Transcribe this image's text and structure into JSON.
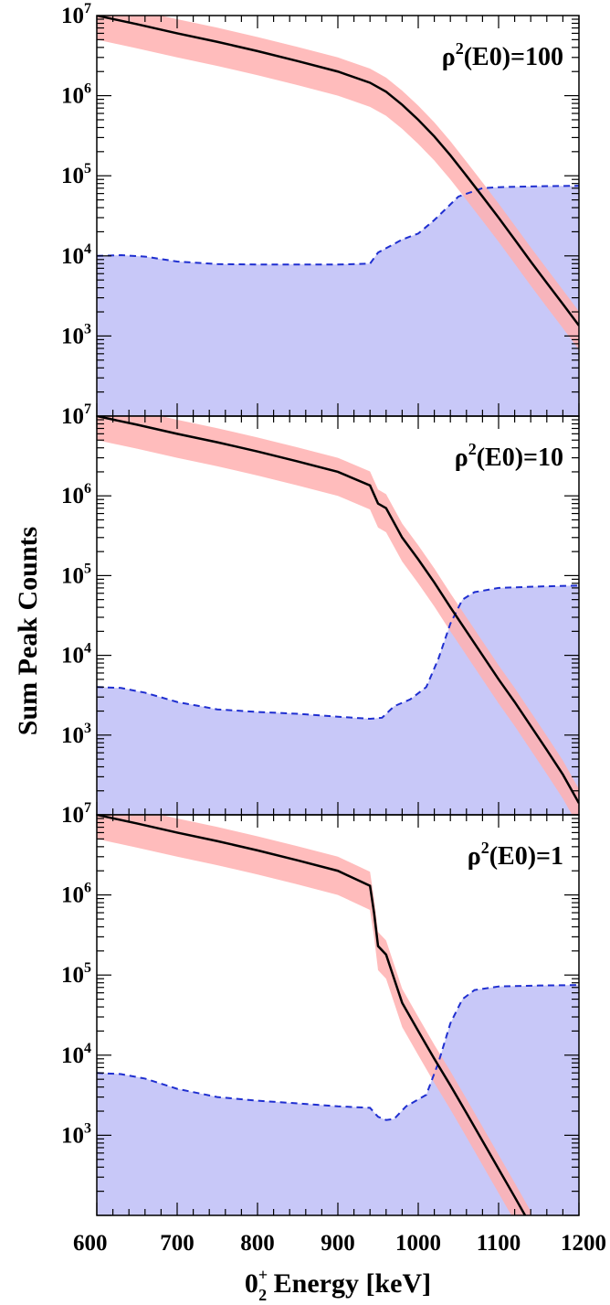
{
  "chart_data": {
    "type": "area",
    "xlabel": "0₂⁺ Energy [keV]",
    "xlabel_parts": {
      "base": "0",
      "sup": "+",
      "sub": "2",
      "rest": " Energy [keV]"
    },
    "ylabel": "Sum Peak Counts",
    "x_ticks": [
      "600",
      "700",
      "800",
      "900",
      "1000",
      "1100",
      "1200"
    ],
    "xlim": [
      600,
      1200
    ],
    "ylog": true,
    "colors": {
      "signal_line": "#000000",
      "signal_band": "#ffb0b0",
      "background_line": "#1f2fd0",
      "background_fill": "#c8c8f8"
    },
    "panels": [
      {
        "label_base": "ρ",
        "label_sup": "2",
        "label_rest": "(E0)=100",
        "ylim": [
          100,
          10000000
        ],
        "y_ticks": [
          {
            "base": "10",
            "exp": "7",
            "value": 10000000
          },
          {
            "base": "10",
            "exp": "6",
            "value": 1000000
          },
          {
            "base": "10",
            "exp": "5",
            "value": 100000
          },
          {
            "base": "10",
            "exp": "4",
            "value": 10000
          },
          {
            "base": "10",
            "exp": "3",
            "value": 1000
          }
        ],
        "series": [
          {
            "role": "signal",
            "x": [
              600,
              650,
              700,
              750,
              800,
              850,
              900,
              940,
              960,
              980,
              1000,
              1020,
              1040,
              1060,
              1080,
              1100,
              1120,
              1140,
              1160,
              1180,
              1200
            ],
            "y": [
              10000000,
              7800000,
              6000000,
              4700000,
              3600000,
              2700000,
              2000000,
              1450000,
              1120000,
              770000,
              500000,
              310000,
              180000,
              100000,
              55000,
              30000,
              16000,
              8500,
              4600,
              2500,
              1350
            ],
            "band_lower_factor": 0.5,
            "band_upper_factor": 1.5
          },
          {
            "role": "background",
            "x": [
              600,
              630,
              660,
              700,
              750,
              800,
              850,
              900,
              940,
              950,
              980,
              1000,
              1020,
              1050,
              1080,
              1100,
              1150,
              1200
            ],
            "y": [
              10000,
              10200,
              9800,
              8500,
              7900,
              7800,
              7800,
              7800,
              8000,
              11000,
              16000,
              19000,
              28000,
              55000,
              70000,
              72000,
              74000,
              75000
            ]
          }
        ]
      },
      {
        "label_base": "ρ",
        "label_sup": "2",
        "label_rest": "(E0)=10",
        "ylim": [
          100,
          10000000
        ],
        "y_ticks": [
          {
            "base": "10",
            "exp": "7",
            "value": 10000000
          },
          {
            "base": "10",
            "exp": "6",
            "value": 1000000
          },
          {
            "base": "10",
            "exp": "5",
            "value": 100000
          },
          {
            "base": "10",
            "exp": "4",
            "value": 10000
          },
          {
            "base": "10",
            "exp": "3",
            "value": 1000
          }
        ],
        "series": [
          {
            "role": "signal",
            "x": [
              600,
              650,
              700,
              750,
              800,
              850,
              900,
              940,
              950,
              960,
              980,
              1000,
              1020,
              1040,
              1060,
              1080,
              1100,
              1120,
              1140,
              1160,
              1180,
              1200
            ],
            "y": [
              10000000,
              7800000,
              6000000,
              4700000,
              3600000,
              2700000,
              2000000,
              1350000,
              800000,
              700000,
              300000,
              160000,
              82000,
              40000,
              20000,
              10000,
              5000,
              2600,
              1300,
              650,
              320,
              140
            ],
            "band_lower_factor": 0.5,
            "band_upper_factor": 1.5
          },
          {
            "role": "background",
            "x": [
              600,
              630,
              660,
              700,
              750,
              800,
              850,
              900,
              940,
              955,
              970,
              990,
              1010,
              1025,
              1040,
              1055,
              1070,
              1100,
              1150,
              1200
            ],
            "y": [
              4000,
              3900,
              3400,
              2600,
              2100,
              1950,
              1850,
              1700,
              1600,
              1650,
              2300,
              2800,
              4000,
              9000,
              25000,
              50000,
              62000,
              70000,
              73000,
              75000
            ]
          }
        ]
      },
      {
        "label_base": "ρ",
        "label_sup": "2",
        "label_rest": "(E0)=1",
        "ylim": [
          100,
          10000000
        ],
        "y_ticks": [
          {
            "base": "10",
            "exp": "7",
            "value": 10000000
          },
          {
            "base": "10",
            "exp": "6",
            "value": 1000000
          },
          {
            "base": "10",
            "exp": "5",
            "value": 100000
          },
          {
            "base": "10",
            "exp": "4",
            "value": 10000
          },
          {
            "base": "10",
            "exp": "3",
            "value": 1000
          }
        ],
        "series": [
          {
            "role": "signal",
            "x": [
              600,
              650,
              700,
              750,
              800,
              850,
              900,
              940,
              945,
              950,
              960,
              970,
              980,
              1000,
              1020,
              1040,
              1060,
              1080,
              1100,
              1120,
              1140
            ],
            "y": [
              10000000,
              7800000,
              6000000,
              4700000,
              3600000,
              2700000,
              2000000,
              1300000,
              600000,
              230000,
              180000,
              90000,
              45000,
              20000,
              9000,
              4200,
              1900,
              850,
              380,
              170,
              75
            ],
            "band_lower_factor": 0.5,
            "band_upper_factor": 1.5
          },
          {
            "role": "background",
            "x": [
              600,
              630,
              660,
              700,
              750,
              800,
              850,
              900,
              940,
              950,
              960,
              970,
              985,
              1000,
              1010,
              1025,
              1040,
              1055,
              1070,
              1100,
              1150,
              1200
            ],
            "y": [
              6000,
              5800,
              5100,
              3800,
              3000,
              2700,
              2500,
              2300,
              2200,
              1700,
              1550,
              1600,
              2300,
              2800,
              3200,
              8000,
              25000,
              50000,
              65000,
              72000,
              74000,
              75000
            ]
          }
        ]
      }
    ]
  }
}
